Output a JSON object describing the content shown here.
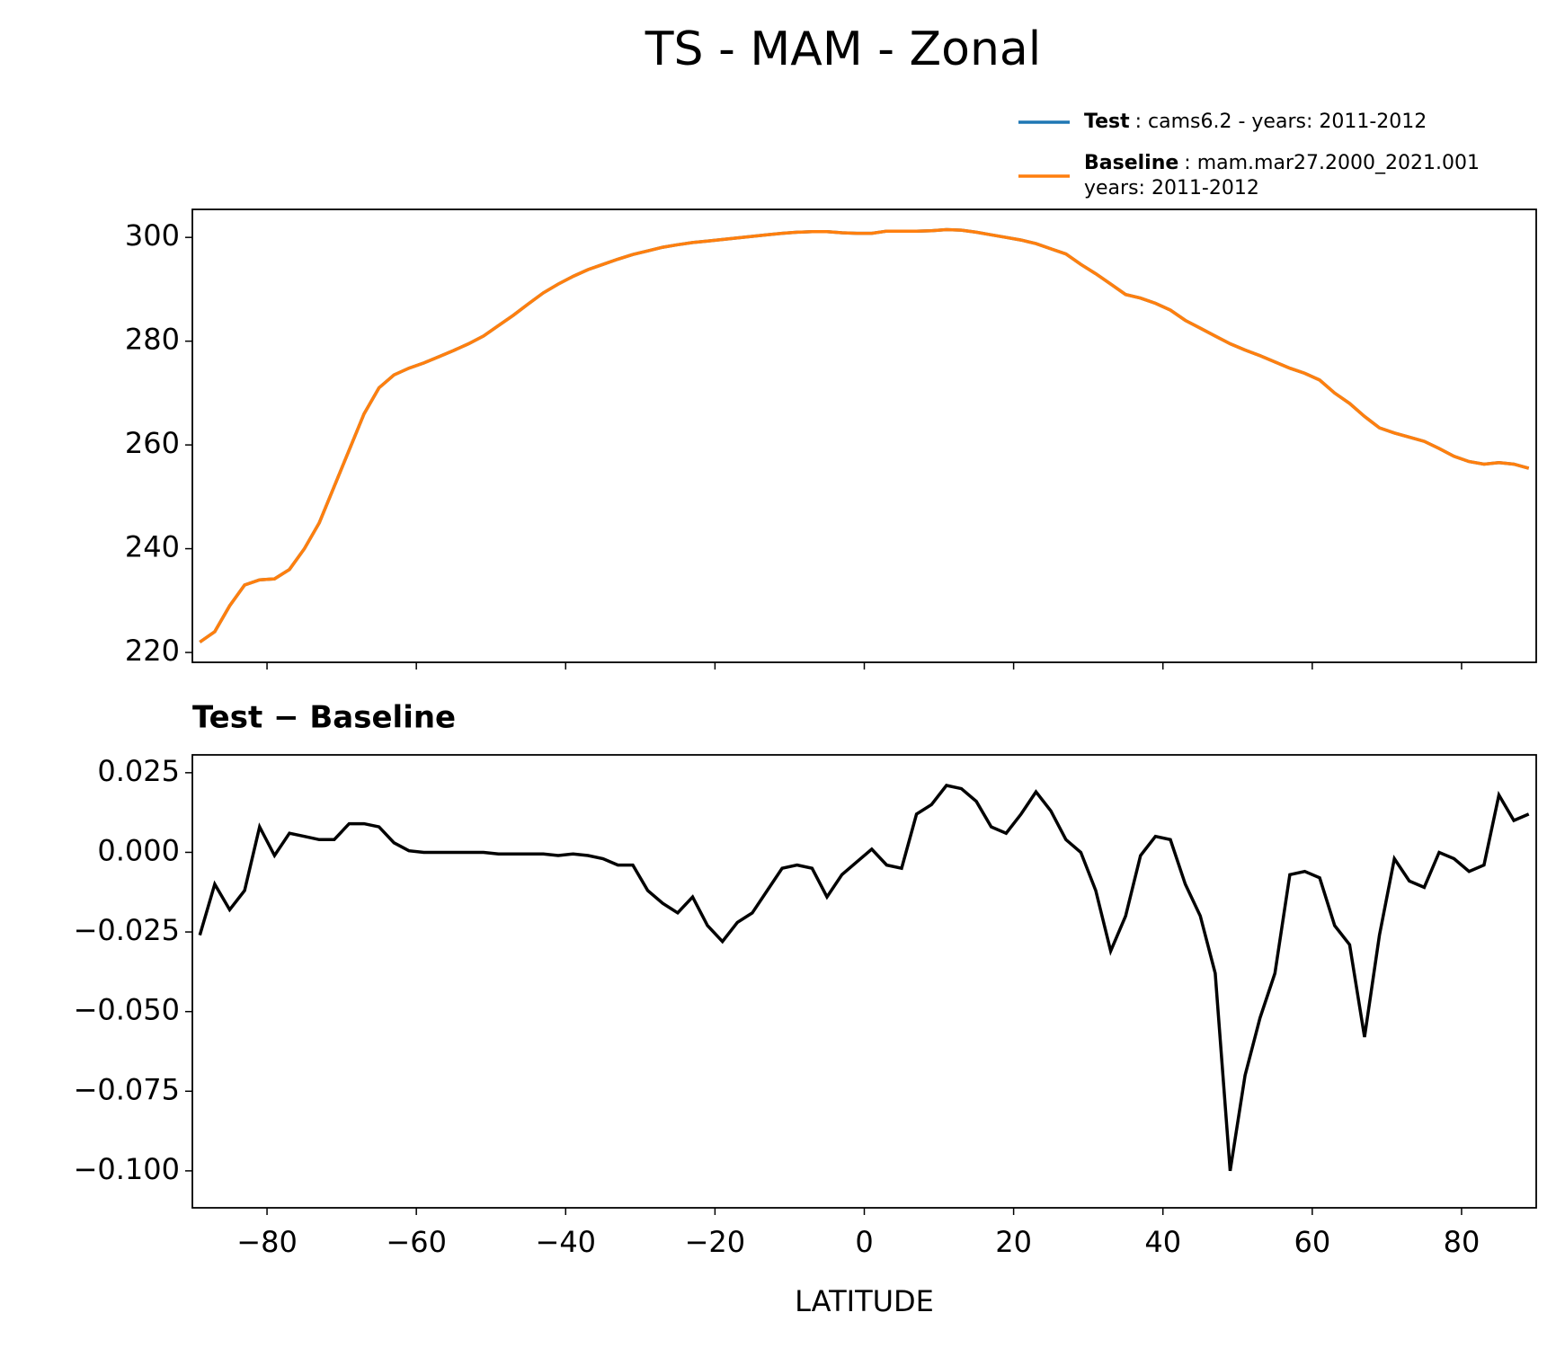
{
  "title": "TS - MAM - Zonal",
  "chart_data": [
    {
      "type": "line",
      "x": [
        -89,
        -87,
        -85,
        -83,
        -81,
        -79,
        -77,
        -75,
        -73,
        -71,
        -69,
        -67,
        -65,
        -63,
        -61,
        -59,
        -57,
        -55,
        -53,
        -51,
        -49,
        -47,
        -45,
        -43,
        -41,
        -39,
        -37,
        -35,
        -33,
        -31,
        -29,
        -27,
        -25,
        -23,
        -21,
        -19,
        -17,
        -15,
        -13,
        -11,
        -9,
        -7,
        -5,
        -3,
        -1,
        1,
        3,
        5,
        7,
        9,
        11,
        13,
        15,
        17,
        19,
        21,
        23,
        25,
        27,
        29,
        31,
        33,
        35,
        37,
        39,
        41,
        43,
        45,
        47,
        49,
        51,
        53,
        55,
        57,
        59,
        61,
        63,
        65,
        67,
        69,
        71,
        73,
        75,
        77,
        79,
        81,
        83,
        85,
        87,
        89
      ],
      "series": [
        {
          "name": "Test",
          "legend_text": [
            ": cams6.2 - years: 2011-2012"
          ],
          "color": "#1f77b4",
          "values": [
            222,
            224,
            229,
            233,
            234,
            234.2,
            236,
            240,
            245,
            252,
            259,
            266,
            271,
            273.5,
            274.8,
            275.8,
            277,
            278.2,
            279.5,
            281,
            283,
            285,
            287.2,
            289.3,
            291,
            292.5,
            293.8,
            294.8,
            295.8,
            296.7,
            297.4,
            298.1,
            298.6,
            299,
            299.3,
            299.6,
            299.9,
            300.2,
            300.5,
            300.8,
            301,
            301.1,
            301.1,
            300.9,
            300.8,
            300.8,
            301.2,
            301.2,
            301.2,
            301.3,
            301.5,
            301.4,
            301,
            300.5,
            300,
            299.5,
            298.8,
            297.8,
            296.8,
            294.8,
            293,
            291,
            289,
            288.3,
            287.3,
            286,
            284,
            282.5,
            281,
            279.5,
            278.3,
            277.2,
            276,
            274.8,
            273.8,
            272.5,
            270,
            268,
            265.5,
            263.3,
            262.3,
            261.5,
            260.7,
            259.3,
            257.8,
            256.8,
            256.3,
            256.6,
            256.3,
            255.5
          ]
        },
        {
          "name": "Baseline",
          "legend_text": [
            ": mam.mar27.2000_2021.001",
            "years: 2011-2012"
          ],
          "color": "#ff7f0e",
          "values": [
            222,
            224,
            229,
            233,
            234,
            234.2,
            236,
            240,
            245,
            252,
            259,
            266,
            271,
            273.5,
            274.8,
            275.8,
            277,
            278.2,
            279.5,
            281,
            283,
            285,
            287.2,
            289.3,
            291,
            292.5,
            293.8,
            294.8,
            295.8,
            296.7,
            297.4,
            298.1,
            298.6,
            299,
            299.3,
            299.6,
            299.9,
            300.2,
            300.5,
            300.8,
            301,
            301.1,
            301.1,
            300.9,
            300.8,
            300.8,
            301.2,
            301.2,
            301.2,
            301.3,
            301.5,
            301.4,
            301,
            300.5,
            300,
            299.5,
            298.8,
            297.8,
            296.8,
            294.8,
            293,
            291,
            289,
            288.3,
            287.3,
            286,
            284,
            282.5,
            281,
            279.5,
            278.3,
            277.2,
            276,
            274.8,
            273.8,
            272.5,
            270,
            268,
            265.5,
            263.3,
            262.3,
            261.5,
            260.7,
            259.3,
            257.8,
            256.8,
            256.3,
            256.6,
            256.3,
            255.5
          ]
        }
      ],
      "xlim": [
        -90,
        90
      ],
      "ylim": [
        218.1,
        305.4
      ],
      "xticks": [
        -80,
        -60,
        -40,
        -20,
        0,
        20,
        40,
        60,
        80
      ],
      "yticks": [
        220,
        240,
        260,
        280,
        300
      ]
    },
    {
      "type": "line",
      "title": "Test − Baseline",
      "xlabel": "LATITUDE",
      "x": [
        -89,
        -87,
        -85,
        -83,
        -81,
        -79,
        -77,
        -75,
        -73,
        -71,
        -69,
        -67,
        -65,
        -63,
        -61,
        -59,
        -57,
        -55,
        -53,
        -51,
        -49,
        -47,
        -45,
        -43,
        -41,
        -39,
        -37,
        -35,
        -33,
        -31,
        -29,
        -27,
        -25,
        -23,
        -21,
        -19,
        -17,
        -15,
        -13,
        -11,
        -9,
        -7,
        -5,
        -3,
        -1,
        1,
        3,
        5,
        7,
        9,
        11,
        13,
        15,
        17,
        19,
        21,
        23,
        25,
        27,
        29,
        31,
        33,
        35,
        37,
        39,
        41,
        43,
        45,
        47,
        49,
        51,
        53,
        55,
        57,
        59,
        61,
        63,
        65,
        67,
        69,
        71,
        73,
        75,
        77,
        79,
        81,
        83,
        85,
        87,
        89
      ],
      "series": [
        {
          "color": "#000000",
          "values": [
            -0.026,
            -0.01,
            -0.018,
            -0.012,
            0.008,
            -0.001,
            0.006,
            0.005,
            0.004,
            0.004,
            0.009,
            0.009,
            0.008,
            0.003,
            0.0005,
            0,
            0,
            0,
            0,
            0,
            -0.0005,
            -0.0005,
            -0.0005,
            -0.0005,
            -0.001,
            -0.0005,
            -0.001,
            -0.002,
            -0.004,
            -0.004,
            -0.012,
            -0.016,
            -0.019,
            -0.014,
            -0.023,
            -0.028,
            -0.022,
            -0.019,
            -0.012,
            -0.005,
            -0.004,
            -0.005,
            -0.014,
            -0.007,
            -0.003,
            0.001,
            -0.004,
            -0.005,
            0.012,
            0.015,
            0.021,
            0.02,
            0.016,
            0.008,
            0.006,
            0.012,
            0.019,
            0.013,
            0.004,
            0,
            -0.012,
            -0.031,
            -0.02,
            -0.001,
            0.005,
            0.004,
            -0.01,
            -0.02,
            -0.038,
            -0.1,
            -0.07,
            -0.052,
            -0.038,
            -0.007,
            -0.006,
            -0.008,
            -0.023,
            -0.029,
            -0.058,
            -0.026,
            -0.002,
            -0.009,
            -0.011,
            0,
            -0.002,
            -0.006,
            -0.004,
            0.018,
            0.01,
            0.012
          ]
        }
      ],
      "xlim": [
        -90,
        90
      ],
      "ylim": [
        -0.1116,
        0.0306
      ],
      "xticks": [
        {
          "value": -80,
          "label": "−80"
        },
        {
          "value": -60,
          "label": "−60"
        },
        {
          "value": -40,
          "label": "−40"
        },
        {
          "value": -20,
          "label": "−20"
        },
        0,
        20,
        40,
        60,
        80
      ],
      "yticks": [
        {
          "value": -0.1,
          "label": "−0.100"
        },
        {
          "value": -0.075,
          "label": "−0.075"
        },
        {
          "value": -0.05,
          "label": "−0.050"
        },
        {
          "value": -0.025,
          "label": "−0.025"
        },
        {
          "value": 0,
          "label": "0.000"
        },
        0.025
      ]
    }
  ]
}
